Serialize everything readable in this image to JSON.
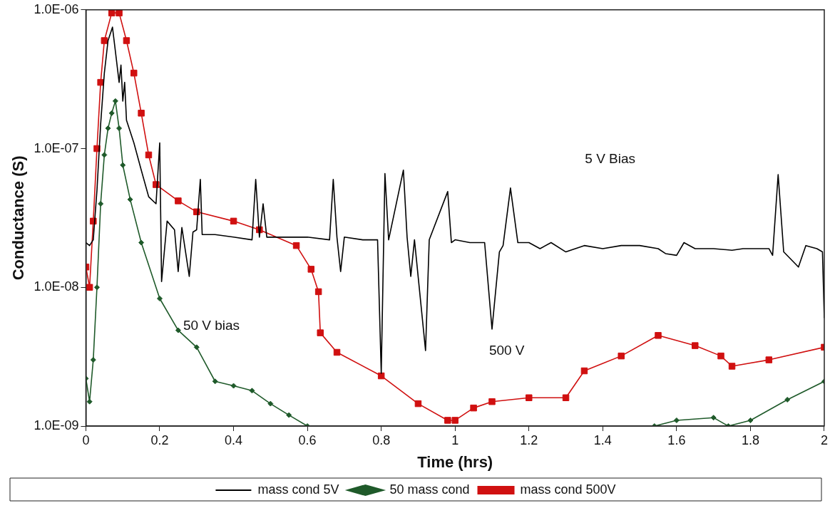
{
  "chart_data": {
    "type": "line",
    "xlabel": "Time (hrs)",
    "ylabel": "Conductance (S)",
    "log": "y",
    "legend": "bottom",
    "line_style": "solid",
    "xlim": [
      0,
      2
    ],
    "xticks": [
      0,
      0.2,
      0.4,
      0.6,
      0.8,
      1,
      1.2,
      1.4,
      1.6,
      1.8,
      2
    ],
    "ylim": [
      1e-09,
      1e-06
    ],
    "yticks": [
      {
        "value": 1e-09,
        "label": "1.0E-09"
      },
      {
        "value": 1e-08,
        "label": "1.0E-08"
      },
      {
        "value": 1e-07,
        "label": "1.0E-07"
      },
      {
        "value": 1e-06,
        "label": "1.0E-06"
      }
    ],
    "annotations": [
      "5 V Bias",
      "50 V bias",
      "500 V"
    ],
    "series": [
      {
        "name": "mass cond 5V",
        "color": "#000000",
        "marker": "none",
        "x": [
          0,
          0.01,
          0.02,
          0.03,
          0.04,
          0.05,
          0.06,
          0.072,
          0.08,
          0.09,
          0.095,
          0.1,
          0.105,
          0.11,
          0.13,
          0.15,
          0.17,
          0.19,
          0.2,
          0.205,
          0.22,
          0.24,
          0.25,
          0.26,
          0.28,
          0.29,
          0.3,
          0.31,
          0.315,
          0.35,
          0.4,
          0.45,
          0.46,
          0.47,
          0.48,
          0.49,
          0.55,
          0.6,
          0.66,
          0.67,
          0.68,
          0.69,
          0.7,
          0.75,
          0.79,
          0.8,
          0.81,
          0.82,
          0.86,
          0.87,
          0.88,
          0.89,
          0.92,
          0.93,
          0.98,
          0.99,
          1,
          1.04,
          1.08,
          1.1,
          1.12,
          1.13,
          1.15,
          1.17,
          1.2,
          1.23,
          1.26,
          1.3,
          1.35,
          1.4,
          1.45,
          1.5,
          1.55,
          1.57,
          1.6,
          1.62,
          1.65,
          1.7,
          1.75,
          1.78,
          1.85,
          1.86,
          1.875,
          1.89,
          1.93,
          1.95,
          1.98,
          1.995,
          2
        ],
        "values": [
          2.1e-08,
          2e-08,
          2.2e-08,
          5e-08,
          1.5e-07,
          3.5e-07,
          6e-07,
          7.5e-07,
          5e-07,
          3e-07,
          4e-07,
          2.2e-07,
          3e-07,
          1.6e-07,
          1.1e-07,
          7e-08,
          4.5e-08,
          4e-08,
          1.1e-07,
          1.1e-08,
          3e-08,
          2.6e-08,
          1.3e-08,
          2.7e-08,
          1.2e-08,
          2.5e-08,
          2.6e-08,
          6e-08,
          2.4e-08,
          2.4e-08,
          2.3e-08,
          2.2e-08,
          6e-08,
          2.3e-08,
          4e-08,
          2.3e-08,
          2.3e-08,
          2.3e-08,
          2.2e-08,
          6e-08,
          2.3e-08,
          1.3e-08,
          2.3e-08,
          2.2e-08,
          2.2e-08,
          2.4e-09,
          6.6e-08,
          2.2e-08,
          7e-08,
          2.3e-08,
          1.2e-08,
          2.2e-08,
          3.5e-09,
          2.2e-08,
          4.9e-08,
          2.1e-08,
          2.2e-08,
          2.1e-08,
          2.1e-08,
          5e-09,
          1.8e-08,
          2e-08,
          5.2e-08,
          2.1e-08,
          2.1e-08,
          1.9e-08,
          2.1e-08,
          1.8e-08,
          2e-08,
          1.9e-08,
          2e-08,
          2e-08,
          1.9e-08,
          1.75e-08,
          1.7e-08,
          2.1e-08,
          1.9e-08,
          1.9e-08,
          1.85e-08,
          1.9e-08,
          1.9e-08,
          1.7e-08,
          6.5e-08,
          1.8e-08,
          1.4e-08,
          2e-08,
          1.9e-08,
          1.8e-08,
          6e-09
        ]
      },
      {
        "name": "50 mass cond",
        "color": "#1f5a2a",
        "marker": "diamond",
        "x": [
          0,
          0.01,
          0.02,
          0.03,
          0.04,
          0.05,
          0.06,
          0.07,
          0.08,
          0.09,
          0.1,
          0.12,
          0.15,
          0.2,
          0.25,
          0.3,
          0.35,
          0.4,
          0.45,
          0.5,
          0.55,
          0.6,
          0.61,
          1.53,
          1.54,
          1.6,
          1.7,
          1.74,
          1.8,
          1.9,
          2
        ],
        "values": [
          2.2e-09,
          1.5e-09,
          3e-09,
          1e-08,
          4e-08,
          9e-08,
          1.4e-07,
          1.8e-07,
          2.2e-07,
          1.4e-07,
          7.6e-08,
          4.3e-08,
          2.1e-08,
          8.3e-09,
          4.9e-09,
          3.7e-09,
          2.1e-09,
          1.95e-09,
          1.8e-09,
          1.45e-09,
          1.2e-09,
          1e-09,
          null,
          null,
          1e-09,
          1.1e-09,
          1.15e-09,
          1e-09,
          1.1e-09,
          1.55e-09,
          2.1e-09
        ]
      },
      {
        "name": "mass cond 500V",
        "color": "#d01010",
        "marker": "square",
        "x": [
          0,
          0.01,
          0.02,
          0.03,
          0.04,
          0.05,
          0.07,
          0.09,
          0.11,
          0.13,
          0.15,
          0.17,
          0.19,
          0.25,
          0.3,
          0.4,
          0.47,
          0.57,
          0.61,
          0.63,
          0.635,
          0.68,
          0.8,
          0.9,
          0.98,
          1,
          1.05,
          1.1,
          1.2,
          1.3,
          1.35,
          1.45,
          1.55,
          1.65,
          1.72,
          1.75,
          1.85,
          2
        ],
        "values": [
          1.4e-08,
          1e-08,
          3e-08,
          1e-07,
          3e-07,
          6e-07,
          9.5e-07,
          9.5e-07,
          6e-07,
          3.5e-07,
          1.8e-07,
          9e-08,
          5.5e-08,
          4.2e-08,
          3.5e-08,
          3e-08,
          2.6e-08,
          2e-08,
          1.35e-08,
          9.3e-09,
          4.7e-09,
          3.4e-09,
          2.3e-09,
          1.45e-09,
          1.1e-09,
          1.1e-09,
          1.35e-09,
          1.5e-09,
          1.6e-09,
          1.6e-09,
          2.5e-09,
          3.2e-09,
          4.5e-09,
          3.8e-09,
          3.2e-09,
          2.7e-09,
          3e-09,
          3.7e-09
        ]
      }
    ]
  }
}
